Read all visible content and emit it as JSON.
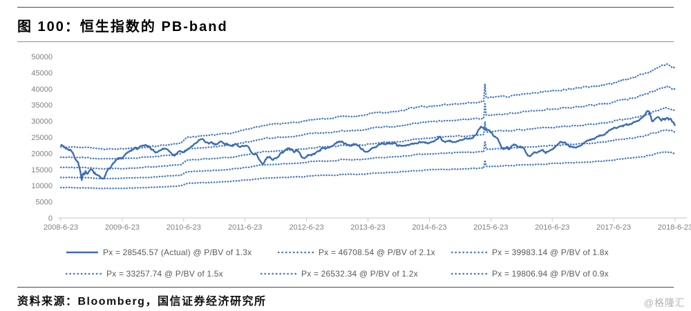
{
  "header": {
    "title": "图 100：恒生指数的 PB-band"
  },
  "footer": {
    "source": "资料来源：Bloomberg，国信证券经济研究所",
    "watermark": "@格隆汇"
  },
  "chart_data": {
    "type": "line",
    "title": "恒生指数的 PB-band",
    "xlabel": "",
    "ylabel": "",
    "ylim": [
      0,
      50000
    ],
    "grid": false,
    "legend_position": "bottom",
    "y_ticks": [
      0,
      5000,
      10000,
      15000,
      20000,
      25000,
      30000,
      35000,
      40000,
      45000,
      50000
    ],
    "x_ticks": [
      "2008-6-23",
      "2009-6-23",
      "2010-6-23",
      "2011-6-23",
      "2012-6-23",
      "2013-6-23",
      "2014-6-23",
      "2015-6-23",
      "2016-6-23",
      "2017-6-23",
      "2018-6-23"
    ],
    "colors": {
      "actual": "#3c6cb3",
      "bands": "#4377cb",
      "axis": "#c6c6c6",
      "tick_label": "#7f7f7f",
      "legend_text": "#595959"
    },
    "series": [
      {
        "name": "Px = 28545.57 (Actual) @ P/BV of 1.3x",
        "style": "solid",
        "current": 28545.57,
        "pbv": 1.3,
        "anchors": [
          [
            0,
            22600
          ],
          [
            0.04,
            22300
          ],
          [
            0.08,
            21600
          ],
          [
            0.12,
            21300
          ],
          [
            0.16,
            21200
          ],
          [
            0.2,
            19800
          ],
          [
            0.24,
            18300
          ],
          [
            0.28,
            17200
          ],
          [
            0.31,
            15300
          ],
          [
            0.34,
            11800
          ],
          [
            0.36,
            13900
          ],
          [
            0.38,
            13100
          ],
          [
            0.4,
            14400
          ],
          [
            0.43,
            13200
          ],
          [
            0.46,
            14400
          ],
          [
            0.5,
            15000
          ],
          [
            0.54,
            14200
          ],
          [
            0.58,
            13200
          ],
          [
            0.62,
            13000
          ],
          [
            0.66,
            12400
          ],
          [
            0.7,
            11900
          ],
          [
            0.73,
            13400
          ],
          [
            0.77,
            15300
          ],
          [
            0.81,
            15800
          ],
          [
            0.85,
            17000
          ],
          [
            0.89,
            17500
          ],
          [
            0.93,
            18400
          ],
          [
            1,
            18500
          ],
          [
            1.05,
            19700
          ],
          [
            1.1,
            20300
          ],
          [
            1.15,
            20900
          ],
          [
            1.2,
            21600
          ],
          [
            1.25,
            21300
          ],
          [
            1.3,
            22200
          ],
          [
            1.36,
            22500
          ],
          [
            1.4,
            22300
          ],
          [
            1.45,
            21700
          ],
          [
            1.5,
            21000
          ],
          [
            1.55,
            20200
          ],
          [
            1.6,
            20900
          ],
          [
            1.65,
            21200
          ],
          [
            1.7,
            21600
          ],
          [
            1.75,
            21000
          ],
          [
            1.8,
            19900
          ],
          [
            1.85,
            19400
          ],
          [
            1.9,
            20200
          ],
          [
            1.95,
            20600
          ],
          [
            2,
            20300
          ],
          [
            2.05,
            21100
          ],
          [
            2.1,
            21600
          ],
          [
            2.15,
            22400
          ],
          [
            2.2,
            23200
          ],
          [
            2.25,
            24100
          ],
          [
            2.3,
            24700
          ],
          [
            2.35,
            23400
          ],
          [
            2.4,
            23000
          ],
          [
            2.45,
            23300
          ],
          [
            2.5,
            22900
          ],
          [
            2.55,
            23100
          ],
          [
            2.6,
            23700
          ],
          [
            2.65,
            23200
          ],
          [
            2.7,
            22900
          ],
          [
            2.75,
            22600
          ],
          [
            2.8,
            22500
          ],
          [
            2.85,
            22700
          ],
          [
            2.9,
            22000
          ],
          [
            2.95,
            22300
          ],
          [
            3,
            22500
          ],
          [
            3.05,
            21900
          ],
          [
            3.1,
            20300
          ],
          [
            3.14,
            19400
          ],
          [
            3.18,
            20000
          ],
          [
            3.22,
            18200
          ],
          [
            3.26,
            17200
          ],
          [
            3.29,
            16400
          ],
          [
            3.33,
            18100
          ],
          [
            3.37,
            19100
          ],
          [
            3.41,
            18700
          ],
          [
            3.45,
            18100
          ],
          [
            3.49,
            18500
          ],
          [
            3.53,
            18800
          ],
          [
            3.58,
            19900
          ],
          [
            3.63,
            20500
          ],
          [
            3.68,
            21300
          ],
          [
            3.72,
            21500
          ],
          [
            3.76,
            21100
          ],
          [
            3.8,
            20600
          ],
          [
            3.84,
            21000
          ],
          [
            3.88,
            20100
          ],
          [
            3.93,
            18900
          ],
          [
            3.97,
            18400
          ],
          [
            4.01,
            19100
          ],
          [
            4.05,
            19500
          ],
          [
            4.1,
            19700
          ],
          [
            4.15,
            20100
          ],
          [
            4.2,
            20900
          ],
          [
            4.25,
            21400
          ],
          [
            4.3,
            21600
          ],
          [
            4.35,
            21900
          ],
          [
            4.4,
            22100
          ],
          [
            4.45,
            22700
          ],
          [
            4.5,
            23300
          ],
          [
            4.55,
            23700
          ],
          [
            4.6,
            23300
          ],
          [
            4.65,
            22900
          ],
          [
            4.7,
            22400
          ],
          [
            4.75,
            22700
          ],
          [
            4.8,
            23000
          ],
          [
            4.85,
            22300
          ],
          [
            4.9,
            21400
          ],
          [
            4.95,
            20600
          ],
          [
            5,
            20300
          ],
          [
            5.04,
            21100
          ],
          [
            5.08,
            21700
          ],
          [
            5.13,
            21900
          ],
          [
            5.18,
            22600
          ],
          [
            5.23,
            23000
          ],
          [
            5.28,
            22900
          ],
          [
            5.33,
            23300
          ],
          [
            5.38,
            22900
          ],
          [
            5.43,
            23200
          ],
          [
            5.48,
            22300
          ],
          [
            5.52,
            22600
          ],
          [
            5.57,
            22200
          ],
          [
            5.62,
            22500
          ],
          [
            5.67,
            22700
          ],
          [
            5.72,
            23100
          ],
          [
            5.77,
            22900
          ],
          [
            5.82,
            23200
          ],
          [
            5.87,
            23400
          ],
          [
            5.92,
            23300
          ],
          [
            5.97,
            23100
          ],
          [
            6.02,
            23400
          ],
          [
            6.07,
            23800
          ],
          [
            6.12,
            24600
          ],
          [
            6.17,
            25200
          ],
          [
            6.21,
            24200
          ],
          [
            6.26,
            23400
          ],
          [
            6.31,
            23900
          ],
          [
            6.36,
            23600
          ],
          [
            6.41,
            23400
          ],
          [
            6.46,
            23700
          ],
          [
            6.51,
            23900
          ],
          [
            6.56,
            24400
          ],
          [
            6.61,
            24800
          ],
          [
            6.66,
            24700
          ],
          [
            6.71,
            25000
          ],
          [
            6.76,
            25800
          ],
          [
            6.81,
            27700
          ],
          [
            6.85,
            28450
          ],
          [
            6.89,
            27700
          ],
          [
            6.94,
            27500
          ],
          [
            7,
            26700
          ],
          [
            7.05,
            25300
          ],
          [
            7.1,
            24700
          ],
          [
            7.14,
            23600
          ],
          [
            7.18,
            21600
          ],
          [
            7.22,
            21300
          ],
          [
            7.26,
            22100
          ],
          [
            7.3,
            21200
          ],
          [
            7.34,
            22400
          ],
          [
            7.39,
            22700
          ],
          [
            7.44,
            22100
          ],
          [
            7.49,
            21900
          ],
          [
            7.54,
            21400
          ],
          [
            7.59,
            19600
          ],
          [
            7.64,
            19200
          ],
          [
            7.69,
            20100
          ],
          [
            7.74,
            20400
          ],
          [
            7.79,
            20600
          ],
          [
            7.84,
            21100
          ],
          [
            7.89,
            20100
          ],
          [
            7.94,
            20700
          ],
          [
            7.99,
            21100
          ],
          [
            8.04,
            21900
          ],
          [
            8.09,
            22900
          ],
          [
            8.14,
            23700
          ],
          [
            8.19,
            23300
          ],
          [
            8.24,
            22900
          ],
          [
            8.29,
            22200
          ],
          [
            8.34,
            21900
          ],
          [
            8.39,
            22000
          ],
          [
            8.44,
            22200
          ],
          [
            8.49,
            22900
          ],
          [
            8.54,
            23600
          ],
          [
            8.59,
            24000
          ],
          [
            8.64,
            24300
          ],
          [
            8.69,
            24600
          ],
          [
            8.74,
            25100
          ],
          [
            8.79,
            25700
          ],
          [
            8.84,
            25800
          ],
          [
            8.89,
            26400
          ],
          [
            8.94,
            27300
          ],
          [
            9,
            27700
          ],
          [
            9.05,
            27900
          ],
          [
            9.1,
            28200
          ],
          [
            9.15,
            28500
          ],
          [
            9.2,
            29100
          ],
          [
            9.25,
            28900
          ],
          [
            9.3,
            29200
          ],
          [
            9.35,
            29900
          ],
          [
            9.4,
            30200
          ],
          [
            9.45,
            30900
          ],
          [
            9.5,
            31900
          ],
          [
            9.55,
            33200
          ],
          [
            9.57,
            33400
          ],
          [
            9.6,
            31500
          ],
          [
            9.63,
            29800
          ],
          [
            9.66,
            30600
          ],
          [
            9.69,
            31200
          ],
          [
            9.72,
            31500
          ],
          [
            9.75,
            30700
          ],
          [
            9.78,
            30200
          ],
          [
            9.81,
            30800
          ],
          [
            9.84,
            30300
          ],
          [
            9.87,
            31000
          ],
          [
            9.9,
            30400
          ],
          [
            9.93,
            30700
          ],
          [
            9.96,
            29800
          ],
          [
            10,
            28545.57
          ]
        ]
      },
      {
        "name": "Px = 46708.54 @ P/BV of 2.1x",
        "style": "dotted",
        "current": 46708.54,
        "pbv": 2.1
      },
      {
        "name": "Px = 39983.14 @ P/BV of 1.8x",
        "style": "dotted",
        "current": 39983.14,
        "pbv": 1.8
      },
      {
        "name": "Px = 33257.74 @ P/BV of 1.5x",
        "style": "dotted",
        "current": 33257.74,
        "pbv": 1.5
      },
      {
        "name": "Px = 26532.34 @ P/BV of 1.2x",
        "style": "dotted",
        "current": 26532.34,
        "pbv": 1.2
      },
      {
        "name": "Px = 19806.94 @ P/BV of 0.9x",
        "style": "dotted",
        "current": 19806.94,
        "pbv": 0.9
      }
    ],
    "book_value_anchors": [
      [
        0,
        10450
      ],
      [
        0.35,
        10400
      ],
      [
        0.7,
        10150
      ],
      [
        1,
        10200
      ],
      [
        1.45,
        10500
      ],
      [
        1.75,
        10800
      ],
      [
        1.95,
        11000
      ],
      [
        2.05,
        11900
      ],
      [
        2.4,
        12200
      ],
      [
        2.75,
        12500
      ],
      [
        3.05,
        13100
      ],
      [
        3.3,
        13700
      ],
      [
        3.6,
        13900
      ],
      [
        3.95,
        14200
      ],
      [
        4.05,
        14500
      ],
      [
        4.5,
        14800
      ],
      [
        4.55,
        15000
      ],
      [
        4.95,
        15100
      ],
      [
        5.05,
        15400
      ],
      [
        5.5,
        15800
      ],
      [
        5.76,
        16300
      ],
      [
        6.2,
        16700
      ],
      [
        6.55,
        16900
      ],
      [
        6.89,
        17150
      ],
      [
        6.903,
        20000
      ],
      [
        6.916,
        17700
      ],
      [
        7.3,
        18000
      ],
      [
        7.6,
        18300
      ],
      [
        7.95,
        18700
      ],
      [
        8.2,
        18900
      ],
      [
        8.6,
        19300
      ],
      [
        8.95,
        19800
      ],
      [
        9.05,
        20100
      ],
      [
        9.3,
        20600
      ],
      [
        9.5,
        21200
      ],
      [
        9.65,
        21900
      ],
      [
        9.78,
        22400
      ],
      [
        9.85,
        22700
      ],
      [
        9.92,
        22500
      ],
      [
        10,
        22100
      ]
    ]
  }
}
